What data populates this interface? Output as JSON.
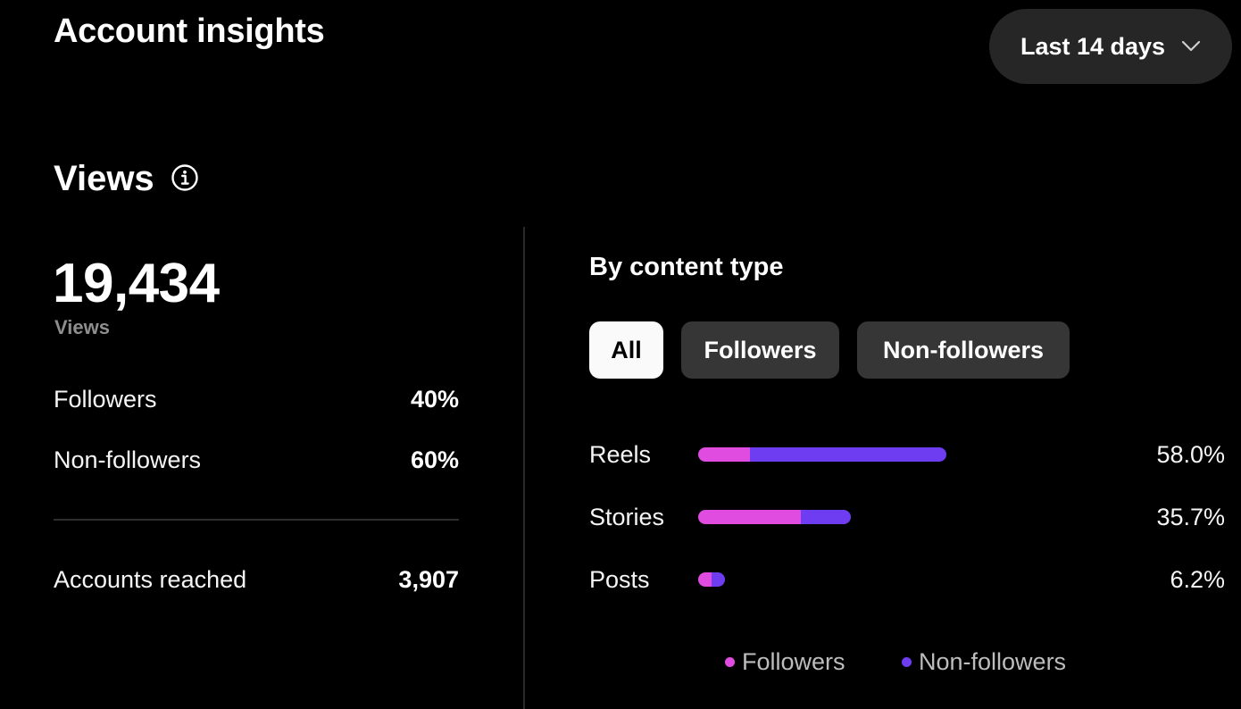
{
  "header": {
    "title": "Account insights",
    "date_range": "Last 14 days"
  },
  "views": {
    "title": "Views",
    "total": "19,434",
    "total_label": "Views",
    "followers_label": "Followers",
    "followers_pct": "40%",
    "nonfollowers_label": "Non-followers",
    "nonfollowers_pct": "60%",
    "reached_label": "Accounts reached",
    "reached_value": "3,907"
  },
  "content_type": {
    "title": "By content type",
    "filters": [
      "All",
      "Followers",
      "Non-followers"
    ],
    "selected_filter": "All"
  },
  "colors": {
    "followers": "#e14ce0",
    "non_followers": "#6e3df2",
    "background": "#000000"
  },
  "chart_data": {
    "type": "bar",
    "categories": [
      "Reels",
      "Stories",
      "Posts"
    ],
    "values_label": [
      "58.0%",
      "35.7%",
      "6.2%"
    ],
    "totals": [
      58.0,
      35.7,
      6.2
    ],
    "series": [
      {
        "name": "Followers",
        "values": [
          12.1,
          24.0,
          3.1
        ]
      },
      {
        "name": "Non-followers",
        "values": [
          45.9,
          11.7,
          3.1
        ]
      }
    ],
    "legend": [
      "Followers",
      "Non-followers"
    ]
  }
}
